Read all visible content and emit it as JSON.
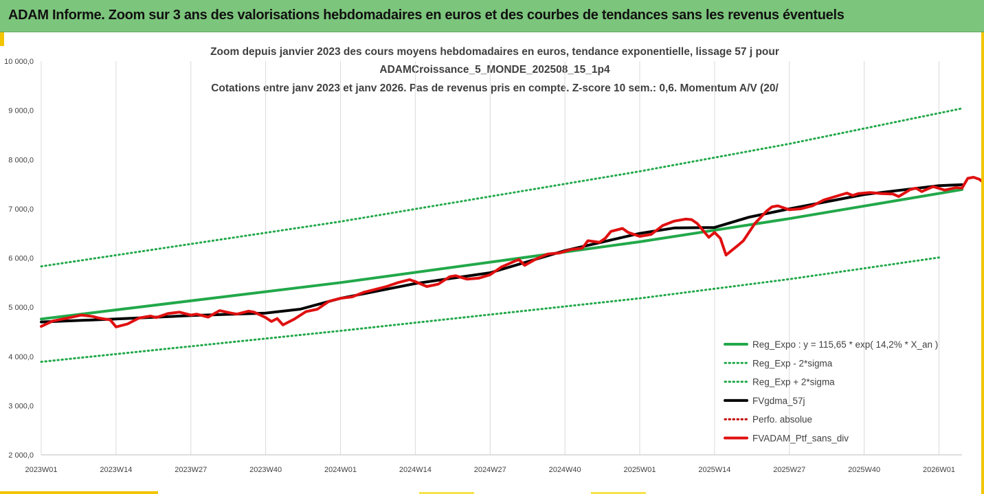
{
  "header": {
    "title": "ADAM Informe. Zoom sur 3 ans des valorisations hebdomadaires en euros et des courbes de tendances sans les revenus éventuels"
  },
  "colors": {
    "header_bg": "#7cc57c",
    "accent": "#f2c500",
    "reg_expo": "#22a84a",
    "reg_band": "#22a84a",
    "fvgdma": "#000000",
    "perfo": "#c00000",
    "fvadam": "#e01010"
  },
  "chart_data": {
    "type": "line",
    "title": [
      "Zoom depuis janvier 2023 des cours moyens hebdomadaires  en euros, tendance exponentielle, lissage 57 j pour",
      "ADAMCroissance_5_MONDE_202508_15_1p4",
      "Cotations entre janv 2023 et janv 2026. Pas de revenus pris en compte. Z-score 10 sem.: 0,6. Momentum A/V (20/"
    ],
    "ylim": [
      2000,
      10000
    ],
    "y_ticks": [
      "2 000,0",
      "3 000,0",
      "4 000,0",
      "5 000,0",
      "6 000,0",
      "7 000,0",
      "8 000,0",
      "9 000,0",
      "10 000,0"
    ],
    "x_ticks": [
      "2023W01",
      "2023W14",
      "2023W27",
      "2023W40",
      "2024W01",
      "2024W14",
      "2024W27",
      "2024W40",
      "2025W01",
      "2025W14",
      "2025W27",
      "2025W40",
      "2026W01"
    ],
    "x_tick_weeks": [
      0,
      13,
      26,
      39,
      52,
      65,
      78,
      91,
      104,
      117,
      130,
      143,
      156
    ],
    "x_range_weeks": [
      0,
      160
    ],
    "grid": "vertical",
    "legend_position": "bottom-right",
    "series": [
      {
        "name": "Reg_Expo : y = 115,65 * exp( 14,2% *  X_an )",
        "style": "solid-thick",
        "color": "#22a84a",
        "points": [
          [
            0,
            4760
          ],
          [
            52,
            5500
          ],
          [
            104,
            6330
          ],
          [
            130,
            6800
          ],
          [
            160,
            7390
          ]
        ]
      },
      {
        "name": "Reg_Exp - 2*sigma",
        "style": "dotted",
        "color": "#22a84a",
        "points": [
          [
            0,
            3890
          ],
          [
            52,
            4520
          ],
          [
            104,
            5180
          ],
          [
            130,
            5570
          ],
          [
            156,
            6010
          ]
        ]
      },
      {
        "name": "Reg_Exp + 2*sigma",
        "style": "dotted",
        "color": "#22a84a",
        "points": [
          [
            0,
            5830
          ],
          [
            52,
            6740
          ],
          [
            104,
            7760
          ],
          [
            130,
            8320
          ],
          [
            160,
            9040
          ]
        ]
      },
      {
        "name": "FVgdma_57j",
        "style": "solid-thick",
        "color": "#000000",
        "points": [
          [
            0,
            4700
          ],
          [
            13,
            4760
          ],
          [
            26,
            4830
          ],
          [
            39,
            4880
          ],
          [
            45,
            4960
          ],
          [
            52,
            5180
          ],
          [
            65,
            5480
          ],
          [
            78,
            5700
          ],
          [
            91,
            6150
          ],
          [
            104,
            6500
          ],
          [
            110,
            6610
          ],
          [
            117,
            6620
          ],
          [
            123,
            6830
          ],
          [
            130,
            7000
          ],
          [
            143,
            7290
          ],
          [
            156,
            7470
          ],
          [
            160,
            7490
          ]
        ]
      },
      {
        "name": "Perfo. absolue",
        "style": "dotted",
        "color": "#c00000",
        "points": []
      },
      {
        "name": "FVADAM_Ptf_sans_div",
        "style": "solid-thick",
        "color": "#e01010",
        "points": [
          [
            0,
            4610
          ],
          [
            2,
            4720
          ],
          [
            5,
            4790
          ],
          [
            7,
            4840
          ],
          [
            9,
            4810
          ],
          [
            10,
            4780
          ],
          [
            12,
            4740
          ],
          [
            13,
            4600
          ],
          [
            15,
            4660
          ],
          [
            17,
            4780
          ],
          [
            19,
            4820
          ],
          [
            20,
            4790
          ],
          [
            22,
            4870
          ],
          [
            24,
            4900
          ],
          [
            26,
            4840
          ],
          [
            27,
            4860
          ],
          [
            29,
            4800
          ],
          [
            31,
            4930
          ],
          [
            33,
            4880
          ],
          [
            34,
            4860
          ],
          [
            36,
            4920
          ],
          [
            37,
            4900
          ],
          [
            39,
            4790
          ],
          [
            40,
            4710
          ],
          [
            41,
            4770
          ],
          [
            42,
            4640
          ],
          [
            44,
            4760
          ],
          [
            46,
            4910
          ],
          [
            48,
            4960
          ],
          [
            50,
            5120
          ],
          [
            52,
            5180
          ],
          [
            54,
            5210
          ],
          [
            56,
            5300
          ],
          [
            58,
            5360
          ],
          [
            60,
            5420
          ],
          [
            62,
            5500
          ],
          [
            64,
            5560
          ],
          [
            65,
            5520
          ],
          [
            67,
            5420
          ],
          [
            69,
            5470
          ],
          [
            71,
            5620
          ],
          [
            72,
            5640
          ],
          [
            74,
            5570
          ],
          [
            76,
            5590
          ],
          [
            78,
            5660
          ],
          [
            80,
            5820
          ],
          [
            82,
            5920
          ],
          [
            83,
            5970
          ],
          [
            84,
            5850
          ],
          [
            86,
            5980
          ],
          [
            88,
            6080
          ],
          [
            90,
            6100
          ],
          [
            92,
            6170
          ],
          [
            94,
            6200
          ],
          [
            95,
            6350
          ],
          [
            97,
            6320
          ],
          [
            98,
            6400
          ],
          [
            99,
            6540
          ],
          [
            101,
            6600
          ],
          [
            102,
            6520
          ],
          [
            104,
            6440
          ],
          [
            106,
            6480
          ],
          [
            108,
            6660
          ],
          [
            110,
            6750
          ],
          [
            112,
            6790
          ],
          [
            113,
            6780
          ],
          [
            114,
            6700
          ],
          [
            116,
            6420
          ],
          [
            117,
            6520
          ],
          [
            118,
            6400
          ],
          [
            119,
            6060
          ],
          [
            121,
            6250
          ],
          [
            122,
            6350
          ],
          [
            124,
            6700
          ],
          [
            126,
            6950
          ],
          [
            127,
            7040
          ],
          [
            128,
            7060
          ],
          [
            130,
            6980
          ],
          [
            132,
            7000
          ],
          [
            134,
            7060
          ],
          [
            136,
            7180
          ],
          [
            138,
            7250
          ],
          [
            140,
            7320
          ],
          [
            141,
            7270
          ],
          [
            142,
            7310
          ],
          [
            144,
            7330
          ],
          [
            146,
            7310
          ],
          [
            148,
            7300
          ],
          [
            149,
            7250
          ],
          [
            151,
            7390
          ],
          [
            152,
            7420
          ],
          [
            153,
            7350
          ],
          [
            155,
            7450
          ],
          [
            157,
            7380
          ],
          [
            159,
            7430
          ],
          [
            160,
            7420
          ],
          [
            161,
            7620
          ],
          [
            162,
            7640
          ],
          [
            163,
            7600
          ],
          [
            164,
            7510
          ]
        ]
      }
    ]
  }
}
